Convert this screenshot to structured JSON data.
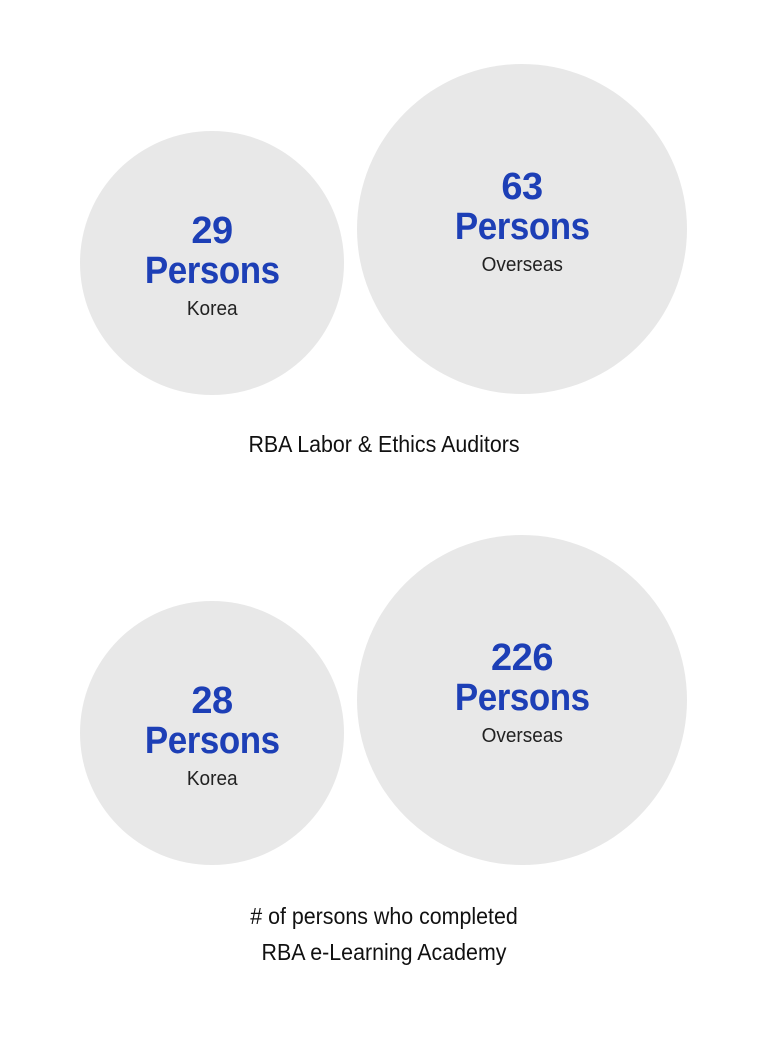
{
  "chart_data": [
    {
      "type": "bubble",
      "title": "RBA Labor & Ethics Auditors",
      "unit": "Persons",
      "categories": [
        "Korea",
        "Overseas"
      ],
      "values": [
        29,
        63
      ]
    },
    {
      "type": "bubble",
      "title_lines": [
        "# of persons who completed",
        "RBA e-Learning Academy"
      ],
      "unit": "Persons",
      "categories": [
        "Korea",
        "Overseas"
      ],
      "values": [
        28,
        226
      ]
    }
  ],
  "colors": {
    "value_text": "#1d3fb6",
    "circle_fill": "#e8e8e8",
    "label_text": "#222222"
  }
}
